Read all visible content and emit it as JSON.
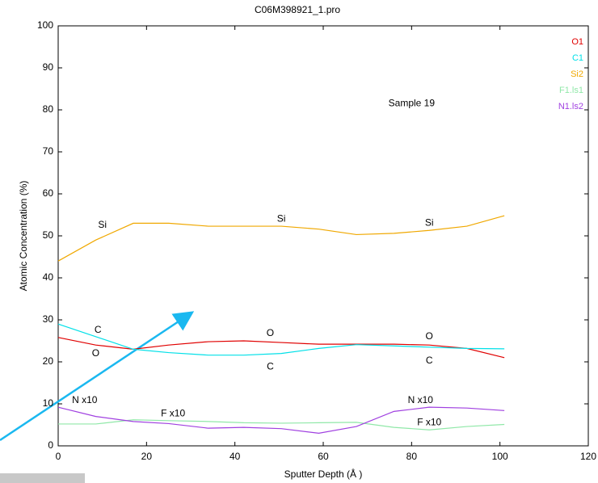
{
  "chart_data": {
    "type": "line",
    "title": "C06M398921_1.pro",
    "x_label": "Sputter Depth (Å )",
    "y_label": "Atomic Concentration (%)",
    "x": [
      0,
      8.5,
      17,
      25,
      34,
      42,
      50.5,
      59,
      67.5,
      76,
      84,
      92.5,
      101
    ],
    "series": [
      {
        "name": "O1",
        "color": "#e00000",
        "values": [
          25.8,
          24,
          23,
          24,
          24.8,
          25,
          24.6,
          24.2,
          24.2,
          24.2,
          24,
          23.2,
          21
        ]
      },
      {
        "name": "C1",
        "color": "#00e0e8",
        "values": [
          29,
          26,
          23,
          22.2,
          21.6,
          21.6,
          22,
          23.2,
          24.1,
          23.8,
          23.5,
          23.2,
          23.1
        ]
      },
      {
        "name": "Si2",
        "color": "#f0a800",
        "values": [
          44,
          49,
          53,
          53,
          52.3,
          52.3,
          52.3,
          51.6,
          50.3,
          50.6,
          51.3,
          52.3,
          54.8
        ]
      },
      {
        "name": "F1.ls1",
        "color": "#90e8a8",
        "values": [
          5.2,
          5.2,
          6.2,
          6,
          5.8,
          5.5,
          5.4,
          5.5,
          5.6,
          4.4,
          3.8,
          4.6,
          5.1
        ]
      },
      {
        "name": "N1.ls2",
        "color": "#a040e0",
        "values": [
          9.2,
          7,
          5.8,
          5.3,
          4.2,
          4.4,
          4.1,
          3,
          4.6,
          8.2,
          9.2,
          9,
          8.4
        ]
      }
    ],
    "annotations": [
      "Si",
      "Si",
      "Si",
      "C",
      "C",
      "C",
      "O",
      "O",
      "O",
      "N x10",
      "N x10",
      "F x10",
      "F x10",
      "Sample 19"
    ],
    "xlim": [
      0,
      120
    ],
    "xticks": [
      0,
      20,
      40,
      60,
      80,
      100,
      120
    ],
    "ylim": [
      0,
      100
    ],
    "yticks": [
      0,
      10,
      20,
      30,
      40,
      50,
      60,
      70,
      80,
      90,
      100
    ],
    "grid": false
  }
}
